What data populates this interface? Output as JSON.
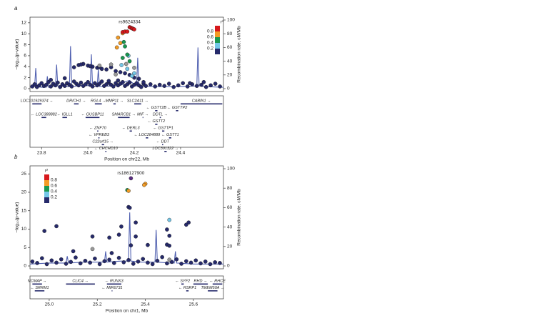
{
  "chart_data": [
    {
      "type": "scatter",
      "panel": "a",
      "annotation": "rs9624334",
      "xlabel": "Position on chr22, Mb",
      "ylabel": "–log₁₀(p-value)",
      "y2label": "Recombination rate, cM/Mb",
      "xlim": [
        23.75,
        24.585
      ],
      "xticks": [
        23.8,
        {
          "value": 24,
          "label": "24.0"
        },
        24.2,
        24.4
      ],
      "ylim": [
        0,
        12.5
      ],
      "yticks": [
        0,
        2,
        4,
        6,
        8,
        10,
        12
      ],
      "y2lim": [
        0,
        100
      ],
      "y2ticks": [
        0,
        20,
        40,
        60,
        80,
        100
      ],
      "legend": {
        "title": "r²",
        "loc": "top right",
        "colors": [
          "#d7191c",
          "#f39c26",
          "#1a9850",
          "#74c7e8",
          "#262a6b"
        ],
        "ticks": [
          0.8,
          0.6,
          0.4,
          0.2
        ]
      },
      "series": [
        {
          "color": "#262a6b",
          "x": [
            23.76,
            23.77,
            23.78,
            23.79,
            23.8,
            23.81,
            23.82,
            23.83,
            23.84,
            23.85,
            23.86,
            23.87,
            23.88,
            23.89,
            23.9,
            23.91,
            23.92,
            23.93,
            23.94,
            23.95,
            23.96,
            23.97,
            23.98,
            23.99,
            24.0,
            24.01,
            24.02,
            24.03,
            24.04,
            24.05,
            24.06,
            24.07,
            24.08,
            24.09,
            24.1,
            24.11,
            24.12,
            24.13,
            24.14,
            24.15,
            24.16,
            24.17,
            24.18,
            24.19,
            24.2,
            24.21,
            24.22,
            24.23,
            24.24,
            24.25,
            24.27,
            24.29,
            24.31,
            24.33,
            24.35,
            24.37,
            24.39,
            24.41,
            24.43,
            24.45,
            24.47,
            24.49,
            24.51,
            24.53,
            24.55,
            24.57,
            23.94,
            23.96,
            23.98,
            24.0,
            24.02,
            24.04,
            24.06,
            24.08,
            24.1,
            24.12,
            24.14,
            24.16,
            24.18,
            24.2,
            24.22,
            24.13,
            24.09,
            23.84,
            23.9,
            24.44,
            24.5,
            24.24,
            23.97,
            24.01,
            24.05
          ],
          "values": [
            0.4,
            0.8,
            0.3,
            0.6,
            1.0,
            0.5,
            0.7,
            1.2,
            0.4,
            0.9,
            0.6,
            1.1,
            0.3,
            0.8,
            0.5,
            1.0,
            0.7,
            0.4,
            1.3,
            0.9,
            0.6,
            1.1,
            0.5,
            0.8,
            1.2,
            0.7,
            0.4,
            1.0,
            0.6,
            0.9,
            1.3,
            0.5,
            0.8,
            1.1,
            0.7,
            0.4,
            1.0,
            0.6,
            0.9,
            1.2,
            0.5,
            0.8,
            1.1,
            0.4,
            0.7,
            1.0,
            0.6,
            0.3,
            0.9,
            0.5,
            0.8,
            0.4,
            0.7,
            0.5,
            0.9,
            0.3,
            0.6,
            1.0,
            0.4,
            0.8,
            0.5,
            0.7,
            0.3,
            0.6,
            0.9,
            0.4,
            3.9,
            4.3,
            4.5,
            4.2,
            4.0,
            3.8,
            3.6,
            3.5,
            3.9,
            3.2,
            3.0,
            2.8,
            2.5,
            2.0,
            1.8,
            1.5,
            1.4,
            1.6,
            1.9,
            1.0,
            1.2,
            1.2,
            4.4,
            4.1,
            3.9
          ]
        },
        {
          "color": "#9a9a9a",
          "x": [
            24.1,
            24.165,
            24.12,
            24.05,
            24.2
          ],
          "values": [
            4.4,
            4.5,
            2.6,
            4.2,
            3.8
          ]
        },
        {
          "color": "#74c7e8",
          "x": [
            24.175,
            24.19,
            24.2,
            24.145,
            24.17
          ],
          "values": [
            6.0,
            2.3,
            2.8,
            4.3,
            3.6
          ]
        },
        {
          "color": "#1a9850",
          "x": [
            24.155,
            24.16,
            24.17,
            24.15,
            24.18
          ],
          "values": [
            8.5,
            7.7,
            6.2,
            5.6,
            5.0
          ]
        },
        {
          "color": "#f39c26",
          "x": [
            24.13,
            24.14,
            24.125,
            24.15
          ],
          "values": [
            9.3,
            8.3,
            7.5,
            10.1
          ]
        },
        {
          "color": "#d7191c",
          "x": [
            24.18,
            24.185,
            24.19,
            24.195,
            24.2,
            24.15,
            24.16,
            24.17
          ],
          "values": [
            11.2,
            11.1,
            11.0,
            10.9,
            10.8,
            10.3,
            10.4,
            10.4
          ]
        },
        {
          "type": "line",
          "axis": "y2",
          "color": "#5060b0",
          "x": [
            23.75,
            23.77,
            23.775,
            23.78,
            23.8,
            23.82,
            23.825,
            23.83,
            23.85,
            23.86,
            23.865,
            23.87,
            23.9,
            23.92,
            23.925,
            23.93,
            23.98,
            24.01,
            24.015,
            24.02,
            24.04,
            24.045,
            24.05,
            24.1,
            24.15,
            24.16,
            24.18,
            24.2,
            24.21,
            24.215,
            24.22,
            24.3,
            24.4,
            24.47,
            24.475,
            24.48,
            24.5,
            24.585
          ],
          "values": [
            2,
            3,
            30,
            3,
            2,
            2,
            18,
            2,
            3,
            4,
            35,
            4,
            3,
            3,
            62,
            3,
            5,
            4,
            50,
            4,
            3,
            28,
            3,
            4,
            6,
            10,
            12,
            6,
            4,
            45,
            4,
            3,
            3,
            4,
            60,
            4,
            3,
            2
          ]
        }
      ],
      "genes": [
        {
          "label": "LOC101929374 →",
          "start": 23.76,
          "end": 23.8
        },
        {
          "label": "DRICH1 →",
          "start": 23.94,
          "end": 23.96
        },
        {
          "label": "RGL4 →",
          "start": 24.03,
          "end": 24.06
        },
        {
          "label": "MMP11 →",
          "start": 24.11,
          "end": 24.12
        },
        {
          "label": "SLC2A11 →",
          "start": 24.2,
          "end": 24.23
        },
        {
          "label": "← GSTT2B",
          "start": 24.29,
          "end": 24.3
        },
        {
          "label": "CABIN1 →",
          "start": 24.4,
          "end": 24.58
        },
        {
          "label": "← LOC388882",
          "start": 23.8,
          "end": 23.82
        },
        {
          "label": "← IGLL1",
          "start": 23.89,
          "end": 23.91
        },
        {
          "label": "← GUSBP11",
          "start": 23.99,
          "end": 24.05
        },
        {
          "label": "SMARCB1 →",
          "start": 24.13,
          "end": 24.18
        },
        {
          "label": "MIF →",
          "start": 24.236,
          "end": 24.237
        },
        {
          "label": "← GSTT2",
          "start": 24.29,
          "end": 24.3
        },
        {
          "label": "← GSTTP2",
          "start": 24.38,
          "end": 24.39
        },
        {
          "label": "← ZNF70",
          "start": 24.04,
          "end": 24.045
        },
        {
          "label": "← DERL3",
          "start": 24.18,
          "end": 24.19
        },
        {
          "label": "DDTL →",
          "start": 24.31,
          "end": 24.315
        },
        {
          "label": "← VPREB3",
          "start": 24.045,
          "end": 24.05
        },
        {
          "label": "← LOC284889",
          "start": 24.25,
          "end": 24.26
        },
        {
          "label": "← GSTTP1",
          "start": 24.32,
          "end": 24.33
        },
        {
          "label": "C22orf15 →",
          "start": 24.06,
          "end": 24.07
        },
        {
          "label": "← DDT",
          "start": 24.32,
          "end": 24.325
        },
        {
          "label": "← CHCHD10",
          "start": 24.075,
          "end": 24.08
        },
        {
          "label": "LOC391322 →",
          "start": 24.33,
          "end": 24.34
        },
        {
          "label": "← GSTT1",
          "start": 24.35,
          "end": 24.36
        }
      ]
    },
    {
      "type": "scatter",
      "panel": "b",
      "annotation": "rs186127900",
      "xlabel": "Position on chr1, Mb",
      "ylabel": "–log₁₀(p-value)",
      "y2label": "Recombination rate, cM/Mb",
      "xlim": [
        24.92,
        25.725
      ],
      "xticks": [
        {
          "value": 25,
          "label": "25.0"
        },
        25.2,
        25.4,
        25.6
      ],
      "ylim": [
        0,
        26.4
      ],
      "yticks": [
        0,
        5,
        10,
        15,
        20,
        25
      ],
      "y2lim": [
        0,
        100
      ],
      "y2ticks": [
        0,
        20,
        40,
        60,
        80,
        100
      ],
      "legend": {
        "title": "r²",
        "loc": "top left",
        "colors": [
          "#d7191c",
          "#f39c26",
          "#1a9850",
          "#74c7e8",
          "#262a6b"
        ],
        "ticks": [
          0.8,
          0.6,
          0.4,
          0.2
        ]
      },
      "series": [
        {
          "color": "#262a6b",
          "x": [
            24.93,
            24.95,
            24.97,
            24.99,
            25.01,
            25.03,
            25.05,
            25.07,
            25.09,
            25.11,
            25.13,
            25.15,
            25.17,
            25.19,
            25.21,
            25.23,
            25.25,
            25.27,
            25.29,
            25.31,
            25.33,
            25.35,
            25.37,
            25.39,
            25.41,
            25.43,
            25.45,
            25.47,
            25.49,
            25.51,
            25.53,
            25.55,
            25.57,
            25.59,
            25.61,
            25.63,
            25.65,
            25.67,
            25.69,
            25.71,
            25.33,
            25.335,
            25.36,
            25.3,
            25.29,
            25.36,
            25.58,
            25.57,
            25.49,
            25.5,
            25.49,
            24.98,
            25.03,
            25.18,
            25.25,
            25.41,
            25.5,
            25.34,
            25.1,
            25.26
          ],
          "values": [
            1.2,
            0.8,
            2.1,
            0.5,
            1.5,
            0.9,
            1.8,
            0.6,
            1.1,
            2.3,
            0.7,
            1.4,
            0.9,
            2.0,
            0.5,
            1.3,
            1.7,
            0.8,
            2.2,
            1.0,
            1.6,
            0.6,
            1.2,
            1.9,
            0.9,
            0.5,
            1.4,
            2.4,
            0.7,
            1.1,
            1.8,
            0.6,
            1.3,
            0.9,
            1.5,
            0.7,
            1.2,
            0.5,
            1.0,
            0.8,
            16.0,
            15.8,
            11.8,
            10.7,
            8.5,
            8.0,
            11.8,
            11.2,
            9.9,
            8.2,
            5.8,
            9.5,
            10.8,
            8.0,
            7.7,
            5.7,
            5.5,
            5.6,
            4.0,
            3.5
          ]
        },
        {
          "color": "#9a9a9a",
          "x": [
            25.18,
            25.5
          ],
          "values": [
            4.6,
            1.7
          ]
        },
        {
          "color": "#74c7e8",
          "x": [
            25.5
          ],
          "values": [
            12.5
          ]
        },
        {
          "color": "#1a9850",
          "x": [
            25.325
          ],
          "values": [
            20.6
          ]
        },
        {
          "color": "#f39c26",
          "x": [
            25.4,
            25.395,
            25.33
          ],
          "values": [
            22.3,
            22.0,
            20.4
          ]
        },
        {
          "color": "#5b2d83",
          "x": [
            25.34
          ],
          "values": [
            23.8
          ]
        },
        {
          "type": "line",
          "axis": "y2",
          "color": "#5060b0",
          "x": [
            24.92,
            25.0,
            25.07,
            25.075,
            25.08,
            25.15,
            25.23,
            25.235,
            25.24,
            25.3,
            25.33,
            25.335,
            25.34,
            25.38,
            25.44,
            25.445,
            25.45,
            25.5,
            25.52,
            25.525,
            25.53,
            25.6,
            25.725
          ],
          "values": [
            2,
            3,
            3,
            10,
            3,
            4,
            4,
            15,
            4,
            5,
            5,
            55,
            5,
            4,
            4,
            37,
            4,
            3,
            3,
            15,
            3,
            2,
            2
          ]
        }
      ],
      "genes": [
        {
          "label": "NCMAP →",
          "start": 24.93,
          "end": 24.97
        },
        {
          "label": "CLIC4 →",
          "start": 25.07,
          "end": 25.19
        },
        {
          "label": "← RUNX3",
          "start": 25.24,
          "end": 25.3
        },
        {
          "label": "← SYF2",
          "start": 25.55,
          "end": 25.56
        },
        {
          "label": "RHD →",
          "start": 25.6,
          "end": 25.66
        },
        {
          "label": "← SRRM1",
          "start": 24.94,
          "end": 24.98
        },
        {
          "label": "← MIR6731",
          "start": 25.26,
          "end": 25.261
        },
        {
          "label": "← RSRP1",
          "start": 25.57,
          "end": 25.58
        },
        {
          "label": "TMEM50A →",
          "start": 25.66,
          "end": 25.7
        },
        {
          "label": "← RHCE",
          "start": 25.68,
          "end": 25.72
        }
      ]
    }
  ]
}
